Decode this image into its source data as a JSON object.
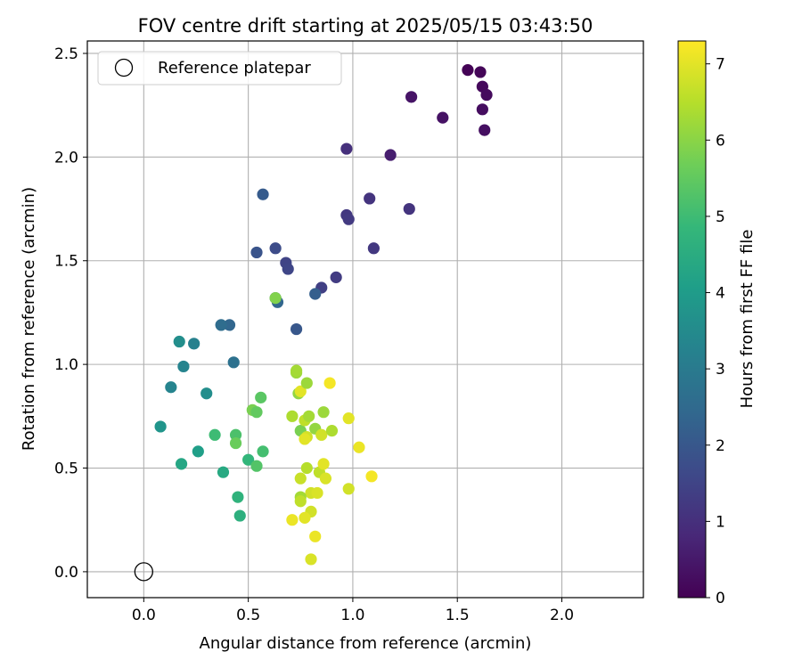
{
  "chart_data": {
    "type": "scatter",
    "title": "FOV centre drift starting at 2025/05/15 03:43:50",
    "xlabel": "Angular distance from reference (arcmin)",
    "ylabel": "Rotation from reference (arcmin)",
    "xlim": [
      -0.27,
      2.39
    ],
    "ylim": [
      -0.125,
      2.56
    ],
    "xticks": [
      "0.0",
      "0.5",
      "1.0",
      "1.5",
      "2.0"
    ],
    "xtick_values": [
      0.0,
      0.5,
      1.0,
      1.5,
      2.0
    ],
    "yticks": [
      "0.0",
      "0.5",
      "1.0",
      "1.5",
      "2.0",
      "2.5"
    ],
    "ytick_values": [
      0.0,
      0.5,
      1.0,
      1.5,
      2.0,
      2.5
    ],
    "grid": true,
    "legend": {
      "placement": "top-left",
      "entries": [
        "Reference platepar"
      ]
    },
    "reference_point": {
      "x": 0.0,
      "y": 0.0
    },
    "colorbar": {
      "label": "Hours from first FF file",
      "range": [
        0,
        7.3
      ],
      "ticks": [
        "0",
        "1",
        "2",
        "3",
        "4",
        "5",
        "6",
        "7"
      ],
      "tick_values": [
        0,
        1,
        2,
        3,
        4,
        5,
        6,
        7
      ],
      "colormap": "viridis",
      "stops": [
        "#440154",
        "#482878",
        "#3e4989",
        "#31688e",
        "#26828e",
        "#1f9e89",
        "#35b779",
        "#6ece58",
        "#b5de2b",
        "#fde725"
      ]
    },
    "points": [
      {
        "x": 1.55,
        "y": 2.42,
        "c": 0.05
      },
      {
        "x": 1.61,
        "y": 2.41,
        "c": 0.1
      },
      {
        "x": 1.62,
        "y": 2.34,
        "c": 0.15
      },
      {
        "x": 1.64,
        "y": 2.3,
        "c": 0.2
      },
      {
        "x": 1.62,
        "y": 2.23,
        "c": 0.25
      },
      {
        "x": 1.63,
        "y": 2.13,
        "c": 0.3
      },
      {
        "x": 1.43,
        "y": 2.19,
        "c": 0.35
      },
      {
        "x": 1.28,
        "y": 2.29,
        "c": 0.4
      },
      {
        "x": 1.18,
        "y": 2.01,
        "c": 0.6
      },
      {
        "x": 0.97,
        "y": 2.04,
        "c": 1.0
      },
      {
        "x": 1.08,
        "y": 1.8,
        "c": 1.1
      },
      {
        "x": 0.97,
        "y": 1.72,
        "c": 1.2
      },
      {
        "x": 0.98,
        "y": 1.7,
        "c": 1.25
      },
      {
        "x": 1.27,
        "y": 1.75,
        "c": 1.1
      },
      {
        "x": 1.1,
        "y": 1.56,
        "c": 1.2
      },
      {
        "x": 0.92,
        "y": 1.42,
        "c": 1.3
      },
      {
        "x": 0.85,
        "y": 1.37,
        "c": 1.4
      },
      {
        "x": 0.68,
        "y": 1.49,
        "c": 1.5
      },
      {
        "x": 0.69,
        "y": 1.46,
        "c": 1.55
      },
      {
        "x": 0.63,
        "y": 1.56,
        "c": 1.7
      },
      {
        "x": 0.54,
        "y": 1.54,
        "c": 1.9
      },
      {
        "x": 0.57,
        "y": 1.82,
        "c": 2.1
      },
      {
        "x": 0.82,
        "y": 1.34,
        "c": 2.2
      },
      {
        "x": 0.63,
        "y": 1.32,
        "c": 2.3
      },
      {
        "x": 0.64,
        "y": 1.3,
        "c": 2.4
      },
      {
        "x": 0.73,
        "y": 1.17,
        "c": 2.0
      },
      {
        "x": 0.41,
        "y": 1.19,
        "c": 2.4
      },
      {
        "x": 0.37,
        "y": 1.19,
        "c": 2.6
      },
      {
        "x": 0.43,
        "y": 1.01,
        "c": 2.7
      },
      {
        "x": 0.24,
        "y": 1.1,
        "c": 3.2
      },
      {
        "x": 0.19,
        "y": 0.99,
        "c": 3.3
      },
      {
        "x": 0.17,
        "y": 1.11,
        "c": 3.6
      },
      {
        "x": 0.13,
        "y": 0.89,
        "c": 3.3
      },
      {
        "x": 0.3,
        "y": 0.86,
        "c": 3.6
      },
      {
        "x": 0.08,
        "y": 0.7,
        "c": 3.8
      },
      {
        "x": 0.26,
        "y": 0.58,
        "c": 4.1
      },
      {
        "x": 0.18,
        "y": 0.52,
        "c": 4.3
      },
      {
        "x": 0.38,
        "y": 0.48,
        "c": 4.4
      },
      {
        "x": 0.34,
        "y": 0.66,
        "c": 5.0
      },
      {
        "x": 0.44,
        "y": 0.66,
        "c": 5.2
      },
      {
        "x": 0.44,
        "y": 0.62,
        "c": 5.6
      },
      {
        "x": 0.5,
        "y": 0.54,
        "c": 4.8
      },
      {
        "x": 0.45,
        "y": 0.36,
        "c": 4.7
      },
      {
        "x": 0.46,
        "y": 0.27,
        "c": 4.6
      },
      {
        "x": 0.54,
        "y": 0.51,
        "c": 5.3
      },
      {
        "x": 0.57,
        "y": 0.58,
        "c": 5.1
      },
      {
        "x": 0.52,
        "y": 0.78,
        "c": 5.8
      },
      {
        "x": 0.54,
        "y": 0.77,
        "c": 5.5
      },
      {
        "x": 0.56,
        "y": 0.84,
        "c": 5.4
      },
      {
        "x": 0.63,
        "y": 1.32,
        "c": 5.9
      },
      {
        "x": 0.73,
        "y": 0.96,
        "c": 6.2
      },
      {
        "x": 0.73,
        "y": 0.97,
        "c": 6.3
      },
      {
        "x": 0.74,
        "y": 0.86,
        "c": 6.1
      },
      {
        "x": 0.75,
        "y": 0.87,
        "c": 7.0
      },
      {
        "x": 0.78,
        "y": 0.91,
        "c": 6.2
      },
      {
        "x": 0.71,
        "y": 0.75,
        "c": 6.4
      },
      {
        "x": 0.75,
        "y": 0.68,
        "c": 5.8
      },
      {
        "x": 0.77,
        "y": 0.73,
        "c": 6.6
      },
      {
        "x": 0.79,
        "y": 0.75,
        "c": 6.3
      },
      {
        "x": 0.78,
        "y": 0.65,
        "c": 6.8
      },
      {
        "x": 0.77,
        "y": 0.64,
        "c": 7.0
      },
      {
        "x": 0.82,
        "y": 0.69,
        "c": 6.1
      },
      {
        "x": 0.85,
        "y": 0.66,
        "c": 6.8
      },
      {
        "x": 0.86,
        "y": 0.77,
        "c": 6.2
      },
      {
        "x": 0.89,
        "y": 0.91,
        "c": 7.2
      },
      {
        "x": 0.9,
        "y": 0.68,
        "c": 6.4
      },
      {
        "x": 0.78,
        "y": 0.5,
        "c": 6.5
      },
      {
        "x": 0.84,
        "y": 0.48,
        "c": 6.6
      },
      {
        "x": 0.86,
        "y": 0.52,
        "c": 7.0
      },
      {
        "x": 0.87,
        "y": 0.45,
        "c": 6.9
      },
      {
        "x": 0.75,
        "y": 0.45,
        "c": 6.7
      },
      {
        "x": 0.8,
        "y": 0.38,
        "c": 6.8
      },
      {
        "x": 0.83,
        "y": 0.38,
        "c": 6.9
      },
      {
        "x": 0.75,
        "y": 0.36,
        "c": 6.3
      },
      {
        "x": 0.75,
        "y": 0.34,
        "c": 6.6
      },
      {
        "x": 0.8,
        "y": 0.29,
        "c": 6.8
      },
      {
        "x": 0.77,
        "y": 0.26,
        "c": 7.0
      },
      {
        "x": 0.71,
        "y": 0.25,
        "c": 7.1
      },
      {
        "x": 0.82,
        "y": 0.17,
        "c": 7.1
      },
      {
        "x": 0.8,
        "y": 0.06,
        "c": 6.9
      },
      {
        "x": 0.98,
        "y": 0.74,
        "c": 7.0
      },
      {
        "x": 0.98,
        "y": 0.4,
        "c": 6.8
      },
      {
        "x": 1.03,
        "y": 0.6,
        "c": 7.1
      },
      {
        "x": 1.09,
        "y": 0.46,
        "c": 7.2
      }
    ]
  }
}
